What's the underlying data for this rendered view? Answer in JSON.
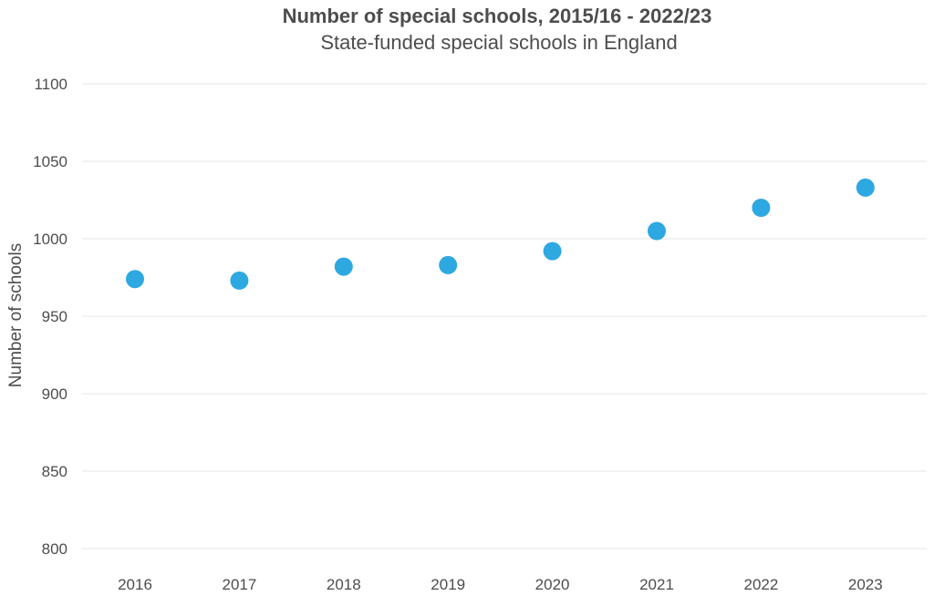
{
  "chart_data": {
    "type": "scatter",
    "title": "Number of special schools, 2015/16 - 2022/23",
    "subtitle": "State-funded special schools in England",
    "xlabel": "",
    "ylabel": "Number of schools",
    "categories": [
      "2016",
      "2017",
      "2018",
      "2019",
      "2020",
      "2021",
      "2022",
      "2023"
    ],
    "values": [
      974,
      973,
      982,
      983,
      992,
      1005,
      1020,
      1033
    ],
    "ylim": [
      800,
      1100
    ],
    "yticks": [
      800,
      850,
      900,
      950,
      1000,
      1050,
      1100
    ],
    "grid": "horizontal",
    "legend": "none",
    "colors": {
      "point": "#2ea8e0",
      "grid": "#e6e6e6",
      "text": "#4d4d4d"
    }
  }
}
